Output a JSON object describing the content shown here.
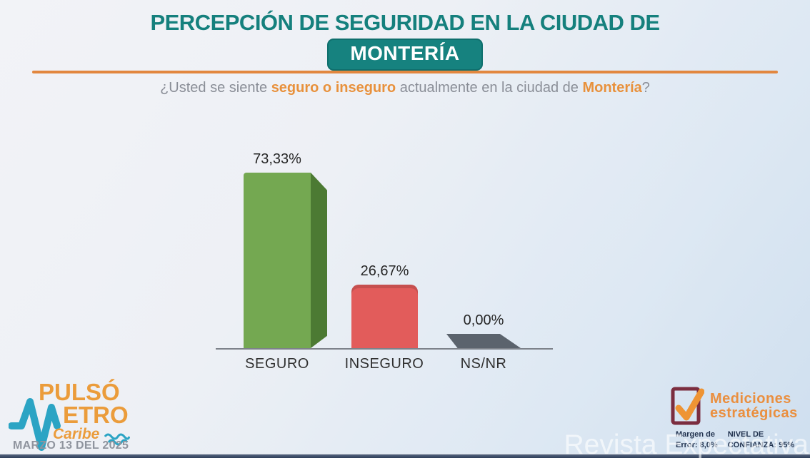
{
  "header": {
    "title_line1": "PERCEPCIÓN DE SEGURIDAD EN LA CIUDAD DE",
    "title_badge": "MONTERÍA",
    "question": {
      "prefix": "¿Usted se siente ",
      "highlight1": "seguro o inseguro",
      "middle": " actualmente en la ciudad de ",
      "highlight2": "Montería",
      "suffix": "?"
    }
  },
  "chart_data": {
    "type": "bar",
    "title": "Percepción de seguridad en la ciudad de Montería",
    "categories": [
      "SEGURO",
      "INSEGURO",
      "NS/NR"
    ],
    "values": [
      73.33,
      26.67,
      0.0
    ],
    "value_labels": [
      "73,33%",
      "26,67%",
      "0,00%"
    ],
    "colors": [
      "#74a851",
      "#e25c5b",
      "#5b636d"
    ],
    "side_color": "#4c7a33",
    "xlabel": "",
    "ylabel": "",
    "grid": false,
    "legend": false,
    "style": "3d-bars, data labels above bars, no y-axis"
  },
  "footer": {
    "logo": {
      "word1": "PULSÓ",
      "word2_rest": "ETRO",
      "word3": "Caribe",
      "pulse_icon": "heartbeat-m-icon",
      "waves_icon": "sea-waves-icon"
    },
    "date": "MARZO 13 DEL 2025",
    "brand": {
      "check_icon": "checkbox-check-icon",
      "name_line1": "Mediciones",
      "name_line2": "estratégicas"
    },
    "stats": {
      "margin_label": "Margen de",
      "margin_value": "Error: 8,0%",
      "confidence_label": "NIVEL DE",
      "confidence_value": "CONFIANZA: 95%"
    },
    "watermark": "Revista Expectativa"
  },
  "colors": {
    "title_teal": "#15807d",
    "badge_teal": "#16827f",
    "accent_orange": "#e8913c",
    "rule_orange": "#e2873f",
    "logo_orange": "#eb9c3b",
    "logo_teal": "#2ba4c4",
    "brand_orange": "#ea8f3f",
    "brand_maroon": "#7b2d3f",
    "stats_navy": "#22334f",
    "bottom_bar_navy": "#2f3e5a"
  }
}
